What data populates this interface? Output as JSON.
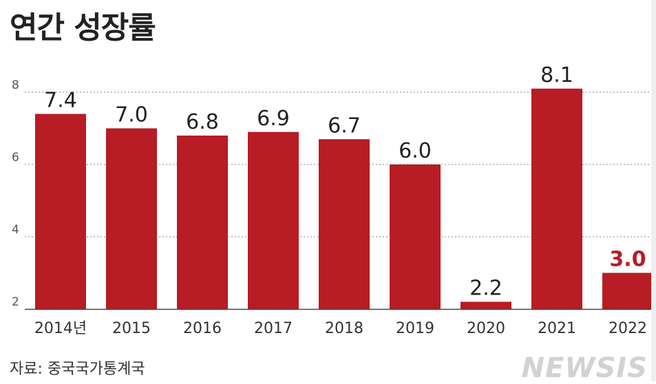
{
  "chart_data": {
    "type": "bar",
    "title": "연간 성장률",
    "categories": [
      "2014년",
      "2015",
      "2016",
      "2017",
      "2018",
      "2019",
      "2020",
      "2021",
      "2022"
    ],
    "values": [
      7.4,
      7.0,
      6.8,
      6.9,
      6.7,
      6.0,
      2.2,
      8.1,
      3.0
    ],
    "value_labels": [
      "7.4",
      "7.0",
      "6.8",
      "6.9",
      "6.7",
      "6.0",
      "2.2",
      "8.1",
      "3.0"
    ],
    "highlight_index": 8,
    "y_ticks": [
      "2",
      "4",
      "6",
      "8"
    ],
    "y_tick_values": [
      2,
      4,
      6,
      8
    ],
    "ylim": [
      2,
      8.4
    ],
    "grid": "dotted horizontal",
    "xlabel": "",
    "ylabel": "",
    "colors": {
      "bar": "#b81c24",
      "highlight_label": "#b81c24",
      "label": "#222222",
      "grid": "#9a9a9a"
    }
  },
  "source": "자료: 중국국가통계국",
  "watermark": "NEWSIS"
}
